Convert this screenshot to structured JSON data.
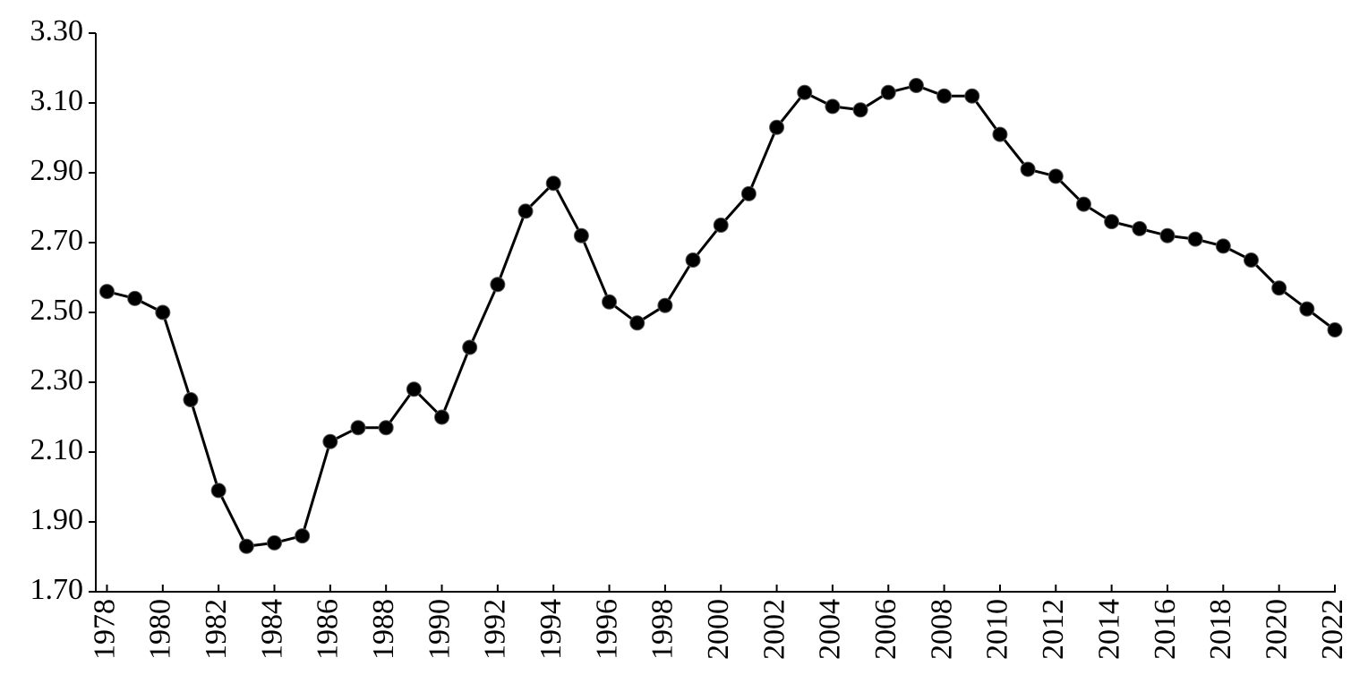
{
  "chart_data": {
    "type": "line",
    "x": [
      1978,
      1979,
      1980,
      1981,
      1982,
      1983,
      1984,
      1985,
      1986,
      1987,
      1988,
      1989,
      1990,
      1991,
      1992,
      1993,
      1994,
      1995,
      1996,
      1997,
      1998,
      1999,
      2000,
      2001,
      2002,
      2003,
      2004,
      2005,
      2006,
      2007,
      2008,
      2009,
      2010,
      2011,
      2012,
      2013,
      2014,
      2015,
      2016,
      2017,
      2018,
      2019,
      2020,
      2021,
      2022
    ],
    "series": [
      {
        "color": "#000000",
        "values": [
          2.56,
          2.54,
          2.5,
          2.25,
          1.99,
          1.83,
          1.84,
          1.86,
          2.13,
          2.17,
          2.17,
          2.28,
          2.2,
          2.4,
          2.58,
          2.79,
          2.87,
          2.72,
          2.53,
          2.47,
          2.52,
          2.65,
          2.75,
          2.84,
          3.03,
          3.13,
          3.09,
          3.08,
          3.13,
          3.15,
          3.12,
          3.12,
          3.01,
          2.91,
          2.89,
          2.81,
          2.76,
          2.74,
          2.72,
          2.71,
          2.69,
          2.65,
          2.57,
          2.51,
          2.45
        ]
      }
    ],
    "xlim": [
      1977.6,
      2022
    ],
    "xticks": [
      1978,
      1980,
      1982,
      1984,
      1986,
      1988,
      1990,
      1992,
      1994,
      1996,
      1998,
      2000,
      2002,
      2004,
      2006,
      2008,
      2010,
      2012,
      2014,
      2016,
      2018,
      2020,
      2022
    ],
    "ylim": [
      1.7,
      3.3
    ],
    "yticks": [
      {
        "value": 1.7,
        "label": "1.70"
      },
      {
        "value": 1.9,
        "label": "1.90"
      },
      {
        "value": 2.1,
        "label": "2.10"
      },
      {
        "value": 2.3,
        "label": "2.30"
      },
      {
        "value": 2.5,
        "label": "2.50"
      },
      {
        "value": 2.7,
        "label": "2.70"
      },
      {
        "value": 2.9,
        "label": "2.90"
      },
      {
        "value": 3.1,
        "label": "3.10"
      },
      {
        "value": 3.3,
        "label": "3.30"
      }
    ],
    "grid": false
  }
}
